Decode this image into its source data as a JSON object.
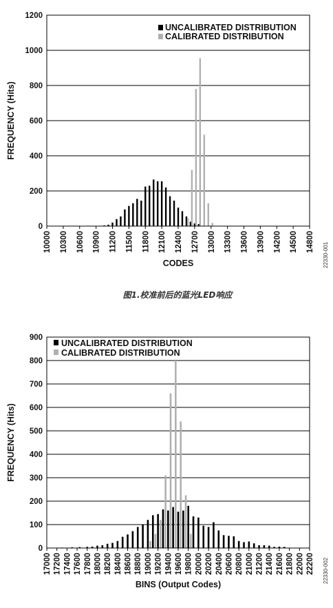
{
  "caption": "图1.校准前后的蓝光LED响应",
  "colors": {
    "uncalibrated": "#000000",
    "calibrated": "#b0b0b0",
    "grid": "#000000"
  },
  "chart_data": [
    {
      "type": "bar",
      "figure_id": "22330-001",
      "title": "",
      "xlabel": "CODES",
      "ylabel": "FREQUENCY (Hits)",
      "xlim": [
        10000,
        14800
      ],
      "ylim": [
        0,
        1200
      ],
      "xticks": [
        "10000",
        "10300",
        "10600",
        "10900",
        "11200",
        "11500",
        "11800",
        "12100",
        "12400",
        "12700",
        "13000",
        "13300",
        "13600",
        "13900",
        "14200",
        "14500",
        "14800"
      ],
      "yticks": [
        "0",
        "200",
        "400",
        "600",
        "800",
        "1000",
        "1200"
      ],
      "grid": true,
      "legend_position": "top-right",
      "series": [
        {
          "name": "UNCALIBRATED DISTRIBUTION",
          "points": [
            [
              11050,
              4
            ],
            [
              11125,
              8
            ],
            [
              11200,
              20
            ],
            [
              11275,
              40
            ],
            [
              11350,
              55
            ],
            [
              11425,
              95
            ],
            [
              11500,
              115
            ],
            [
              11575,
              130
            ],
            [
              11650,
              155
            ],
            [
              11725,
              145
            ],
            [
              11800,
              225
            ],
            [
              11875,
              230
            ],
            [
              11950,
              265
            ],
            [
              12025,
              255
            ],
            [
              12100,
              255
            ],
            [
              12175,
              220
            ],
            [
              12250,
              170
            ],
            [
              12325,
              145
            ],
            [
              12400,
              105
            ],
            [
              12475,
              85
            ],
            [
              12550,
              55
            ],
            [
              12625,
              25
            ],
            [
              12700,
              15
            ],
            [
              12775,
              12
            ]
          ]
        },
        {
          "name": "CALIBRATED DISTRIBUTION",
          "points": [
            [
              12575,
              45
            ],
            [
              12650,
              320
            ],
            [
              12725,
              780
            ],
            [
              12800,
              955
            ],
            [
              12875,
              520
            ],
            [
              12950,
              130
            ],
            [
              13025,
              18
            ]
          ]
        }
      ]
    },
    {
      "type": "bar",
      "figure_id": "22330-002",
      "title": "",
      "xlabel": "BINS (Output Codes)",
      "ylabel": "FREQUENCY (Hits)",
      "xlim": [
        17000,
        22200
      ],
      "ylim": [
        0,
        900
      ],
      "xticks": [
        "17000",
        "17200",
        "17400",
        "17600",
        "17800",
        "18000",
        "18200",
        "18400",
        "18600",
        "18800",
        "19000",
        "19200",
        "19400",
        "19600",
        "19800",
        "20000",
        "20200",
        "20400",
        "20600",
        "20800",
        "21000",
        "21200",
        "21400",
        "21600",
        "21800",
        "22000",
        "22200"
      ],
      "yticks": [
        "0",
        "100",
        "200",
        "300",
        "400",
        "500",
        "600",
        "700",
        "800",
        "900"
      ],
      "grid": true,
      "legend_position": "top-left",
      "series": [
        {
          "name": "UNCALIBRATED DISTRIBUTION",
          "points": [
            [
              17300,
              2
            ],
            [
              17500,
              3
            ],
            [
              17650,
              4
            ],
            [
              17800,
              5
            ],
            [
              17900,
              6
            ],
            [
              18000,
              10
            ],
            [
              18100,
              12
            ],
            [
              18200,
              18
            ],
            [
              18300,
              22
            ],
            [
              18400,
              30
            ],
            [
              18500,
              48
            ],
            [
              18600,
              58
            ],
            [
              18700,
              72
            ],
            [
              18800,
              90
            ],
            [
              18900,
              100
            ],
            [
              19000,
              120
            ],
            [
              19100,
              140
            ],
            [
              19200,
              145
            ],
            [
              19300,
              165
            ],
            [
              19400,
              160
            ],
            [
              19500,
              175
            ],
            [
              19600,
              155
            ],
            [
              19700,
              160
            ],
            [
              19800,
              180
            ],
            [
              19900,
              135
            ],
            [
              20000,
              130
            ],
            [
              20100,
              95
            ],
            [
              20200,
              90
            ],
            [
              20300,
              110
            ],
            [
              20400,
              75
            ],
            [
              20500,
              55
            ],
            [
              20600,
              52
            ],
            [
              20700,
              50
            ],
            [
              20800,
              30
            ],
            [
              20900,
              25
            ],
            [
              21000,
              28
            ],
            [
              21100,
              20
            ],
            [
              21200,
              12
            ],
            [
              21300,
              12
            ],
            [
              21400,
              10
            ],
            [
              21500,
              5
            ],
            [
              21600,
              6
            ],
            [
              21700,
              5
            ]
          ]
        },
        {
          "name": "CALIBRATED DISTRIBUTION",
          "points": [
            [
              19050,
              30
            ],
            [
              19150,
              60
            ],
            [
              19250,
              120
            ],
            [
              19350,
              310
            ],
            [
              19450,
              660
            ],
            [
              19550,
              800
            ],
            [
              19650,
              540
            ],
            [
              19750,
              225
            ],
            [
              19850,
              60
            ]
          ]
        }
      ]
    }
  ]
}
